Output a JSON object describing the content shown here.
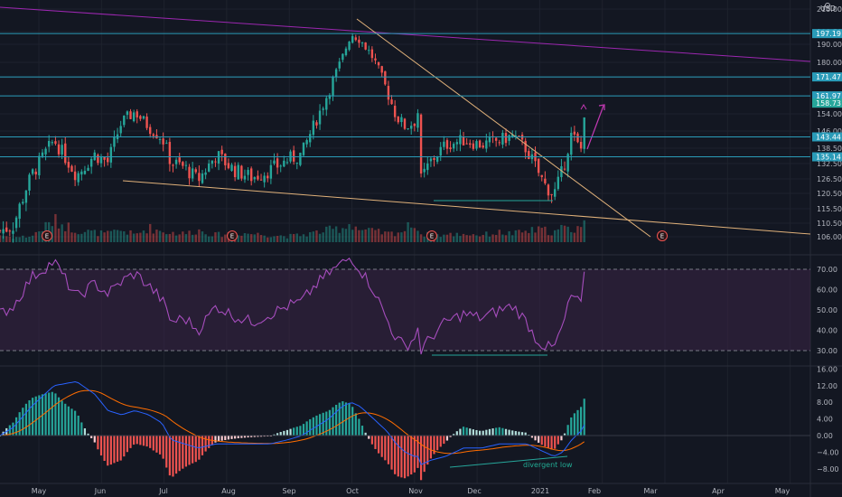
{
  "currency": "USD",
  "colors": {
    "background": "#131722",
    "grid": "#1e222d",
    "up": "#26a69a",
    "down": "#ef5350",
    "hline": "#2962ff",
    "hlineBadge": "#2a9bb8",
    "upperTrend": "#9c27b0",
    "tanLine": "#e0b17a",
    "rsi": "#a64dbd",
    "rsiBand": "#3a2445",
    "macd": "#2962ff",
    "signal": "#ff6d00",
    "axisText": "#b2b5be",
    "earnings": "#ef5350"
  },
  "chart_data": [
    {
      "type": "candlestick",
      "name": "price",
      "currency": "USD",
      "y_ticks": [
        106.0,
        110.5,
        115.5,
        120.5,
        126.5,
        132.5,
        138.5,
        146.0,
        154.0,
        162.0,
        171.0,
        180.0,
        190.0,
        198.5,
        210.0
      ],
      "y_tick_labels": [
        "106.00",
        "110.50",
        "115.50",
        "120.50",
        "126.50",
        "132.50",
        "138.50",
        "146.00",
        "154.00",
        "162.00",
        "171.00",
        "180.00",
        "190.00",
        "198.50",
        "210.00"
      ],
      "ylim": [
        104.5,
        212
      ],
      "x_ticks": [
        "May",
        "Jun",
        "Jul",
        "Aug",
        "Sep",
        "Oct",
        "Nov",
        "Dec",
        "2021",
        "Feb",
        "Mar",
        "Apr",
        "May"
      ],
      "horizontal_levels": [
        {
          "value": 197.19,
          "label": "197.19"
        },
        {
          "value": 171.47,
          "label": "171.47"
        },
        {
          "value": 161.97,
          "label": "161.97"
        },
        {
          "value": 143.44,
          "label": "143.44"
        },
        {
          "value": 135.14,
          "label": "135.14"
        }
      ],
      "last_price": {
        "value": 158.73,
        "label": "158.73"
      },
      "earnings_markers": [
        "E",
        "E",
        "E",
        "E"
      ],
      "anchors": [
        {
          "d": 0,
          "v": 108
        },
        {
          "d": 6,
          "v": 110
        },
        {
          "d": 14,
          "v": 128
        },
        {
          "d": 24,
          "v": 142
        },
        {
          "d": 34,
          "v": 128
        },
        {
          "d": 42,
          "v": 136
        },
        {
          "d": 48,
          "v": 133
        },
        {
          "d": 54,
          "v": 150
        },
        {
          "d": 60,
          "v": 155
        },
        {
          "d": 66,
          "v": 148
        },
        {
          "d": 72,
          "v": 143
        },
        {
          "d": 76,
          "v": 133
        },
        {
          "d": 82,
          "v": 131
        },
        {
          "d": 88,
          "v": 126
        },
        {
          "d": 96,
          "v": 136
        },
        {
          "d": 104,
          "v": 130
        },
        {
          "d": 112,
          "v": 127
        },
        {
          "d": 120,
          "v": 130
        },
        {
          "d": 128,
          "v": 134
        },
        {
          "d": 134,
          "v": 136
        },
        {
          "d": 140,
          "v": 150
        },
        {
          "d": 146,
          "v": 164
        },
        {
          "d": 152,
          "v": 182
        },
        {
          "d": 156,
          "v": 197
        },
        {
          "d": 160,
          "v": 193
        },
        {
          "d": 166,
          "v": 182
        },
        {
          "d": 172,
          "v": 164
        },
        {
          "d": 176,
          "v": 153
        },
        {
          "d": 180,
          "v": 148
        },
        {
          "d": 184,
          "v": 150
        },
        {
          "d": 186,
          "v": 156
        },
        {
          "d": 187,
          "v": 126
        },
        {
          "d": 191,
          "v": 133
        },
        {
          "d": 198,
          "v": 140
        },
        {
          "d": 206,
          "v": 142
        },
        {
          "d": 214,
          "v": 140
        },
        {
          "d": 222,
          "v": 142
        },
        {
          "d": 228,
          "v": 144
        },
        {
          "d": 234,
          "v": 138
        },
        {
          "d": 238,
          "v": 131
        },
        {
          "d": 242,
          "v": 124
        },
        {
          "d": 246,
          "v": 120
        },
        {
          "d": 250,
          "v": 130
        },
        {
          "d": 254,
          "v": 145
        },
        {
          "d": 258,
          "v": 137
        },
        {
          "d": 260,
          "v": 160
        }
      ],
      "volume_relative": [
        0.3,
        0.2,
        0.25,
        0.9,
        0.5,
        0.4,
        0.35,
        0.5,
        0.3,
        0.6,
        0.45,
        0.4,
        0.35,
        0.5,
        0.3,
        0.4,
        0.35,
        0.3,
        0.25,
        0.3,
        0.4,
        0.5,
        0.6,
        0.8,
        0.5,
        0.45,
        0.35,
        0.4,
        0.5,
        0.9,
        0.4,
        0.35,
        0.3,
        0.3,
        0.35,
        0.3,
        0.4,
        0.35,
        0.45,
        0.5,
        0.5,
        0.4,
        0.6,
        0.5,
        0.7,
        0.75
      ]
    },
    {
      "type": "line",
      "name": "RSI",
      "y_ticks": [
        30.0,
        40.0,
        50.0,
        60.0,
        70.0
      ],
      "y_tick_labels": [
        "30.00",
        "40.00",
        "50.00",
        "60.00",
        "70.00"
      ],
      "ylim": [
        22,
        78
      ],
      "bands": [
        30,
        70
      ],
      "values_at_anchors": [
        48,
        52,
        66,
        74,
        56,
        63,
        58,
        64,
        68,
        62,
        55,
        44,
        46,
        40,
        52,
        47,
        44,
        48,
        52,
        54,
        62,
        68,
        73,
        76,
        70,
        60,
        45,
        36,
        32,
        36,
        42,
        30,
        36,
        44,
        48,
        46,
        50,
        52,
        44,
        36,
        32,
        31,
        42,
        58,
        52,
        70
      ]
    },
    {
      "type": "line+histogram",
      "name": "MACD",
      "y_ticks": [
        -8.0,
        -4.0,
        0.0,
        4.0,
        8.0,
        12.0,
        16.0
      ],
      "y_tick_labels": [
        "−8.00",
        "−4.00",
        "0.00",
        "4.00",
        "8.00",
        "12.00",
        "16.00"
      ],
      "ylim": [
        -10,
        17
      ],
      "macd_at_anchors": [
        0,
        2,
        7,
        12,
        13,
        10,
        6,
        5,
        6,
        5,
        3,
        -1,
        -2,
        -3,
        -2,
        -2,
        -2,
        -2,
        -1,
        0,
        2,
        4,
        7,
        8,
        7,
        4,
        1,
        -2,
        -4,
        -5,
        -5,
        -7,
        -6,
        -5,
        -3,
        -3,
        -2,
        -2,
        -2,
        -3,
        -4,
        -5,
        -4,
        -1,
        1,
        3
      ],
      "annotation": "divergent low"
    }
  ]
}
